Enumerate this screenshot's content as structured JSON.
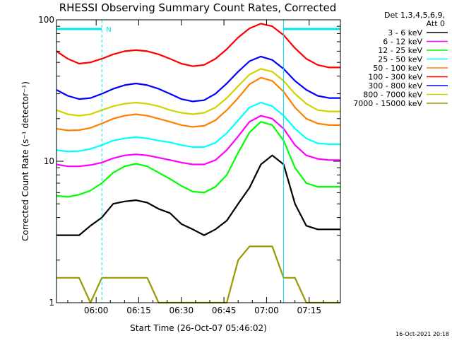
{
  "chart_data": {
    "type": "line",
    "title": "RHESSI Observing Summary Count Rates, Corrected",
    "xlabel": "Start Time (26-Oct-07 05:46:02)",
    "ylabel": "Corrected Count Rate (s⁻¹ detector⁻¹)",
    "x_scale": "time",
    "y_scale": "log",
    "xlim": [
      "05:46:02",
      "07:26:00"
    ],
    "ylim": [
      1,
      100
    ],
    "x_ticks": [
      "06:00",
      "06:15",
      "06:30",
      "06:45",
      "07:00",
      "07:15"
    ],
    "y_ticks": [
      "1",
      "10",
      "100"
    ],
    "legend_header": [
      "Det 1,3,4,5,6,9,",
      "Att 0"
    ],
    "legend_position": "right",
    "markers": {
      "night_bars": [
        [
          "05:46",
          "06:02"
        ],
        [
          "07:06",
          "07:26"
        ]
      ],
      "n_label": "N",
      "vertical_lines_dashed": [
        "06:02",
        "07:26"
      ],
      "vertical_lines_solid": [
        "05:46",
        "07:06"
      ]
    },
    "x_hours": [
      "05:46",
      "05:50",
      "05:54",
      "05:58",
      "06:02",
      "06:06",
      "06:10",
      "06:14",
      "06:18",
      "06:22",
      "06:26",
      "06:30",
      "06:34",
      "06:38",
      "06:42",
      "06:46",
      "06:50",
      "06:54",
      "06:58",
      "07:02",
      "07:06",
      "07:10",
      "07:14",
      "07:18",
      "07:22",
      "07:26"
    ],
    "series": [
      {
        "name": "3 - 6 keV",
        "color": "#000000",
        "values": [
          3,
          3,
          3,
          3.5,
          4,
          5,
          5.2,
          5.3,
          5.1,
          4.6,
          4.3,
          3.6,
          3.3,
          3,
          3.3,
          3.8,
          5,
          6.5,
          9.5,
          11,
          9.5,
          5,
          3.5,
          3.3,
          3.3,
          3.3
        ]
      },
      {
        "name": "6 - 12 keV",
        "color": "#ff00ff",
        "values": [
          9.5,
          9.2,
          9.2,
          9.4,
          9.8,
          10.5,
          11,
          11.2,
          11,
          10.6,
          10.2,
          9.8,
          9.5,
          9.5,
          10.2,
          12,
          15,
          19,
          21,
          20,
          17,
          13,
          11,
          10.4,
          10.2,
          10.2
        ]
      },
      {
        "name": "12 - 25 keV",
        "color": "#00ff00",
        "values": [
          5.7,
          5.6,
          5.8,
          6.2,
          7,
          8.3,
          9.2,
          9.6,
          9.2,
          8.3,
          7.5,
          6.7,
          6.1,
          6,
          6.6,
          8,
          11.5,
          16,
          19,
          18,
          14,
          9,
          7,
          6.6,
          6.6,
          6.6
        ]
      },
      {
        "name": "25 - 50 keV",
        "color": "#00ffff",
        "values": [
          12,
          11.7,
          11.8,
          12.2,
          13,
          14,
          14.5,
          14.8,
          14.5,
          14,
          13.6,
          13,
          12.6,
          12.6,
          13.5,
          15.8,
          19.5,
          24,
          26,
          24.5,
          21,
          17,
          14.5,
          13.4,
          13.2,
          13.2
        ]
      },
      {
        "name": "50 - 100 keV",
        "color": "#ff8000",
        "values": [
          17,
          16.5,
          16.6,
          17.2,
          18.5,
          20,
          21,
          21.5,
          21,
          20,
          19,
          18,
          17.5,
          17.8,
          19.5,
          23,
          28,
          35,
          39,
          37,
          31,
          24,
          20,
          18.5,
          18,
          18
        ]
      },
      {
        "name": "100 - 300 keV",
        "color": "#ff0000",
        "values": [
          60,
          53,
          49,
          50,
          53,
          57,
          60,
          61,
          60,
          57,
          53,
          49,
          47,
          48,
          53,
          62,
          75,
          87,
          94,
          90,
          78,
          63,
          53,
          48,
          46,
          46
        ]
      },
      {
        "name": "300 - 800 keV",
        "color": "#0000ff",
        "values": [
          32,
          29,
          27.5,
          28,
          30,
          32.5,
          34.5,
          35.5,
          34.5,
          32.5,
          30,
          27.5,
          26.5,
          27,
          30,
          35.5,
          43,
          51,
          55,
          52,
          45,
          37,
          32,
          29,
          28,
          28
        ]
      },
      {
        "name": "800 - 7000 keV",
        "color": "#d2d200",
        "values": [
          23,
          21.5,
          21,
          21.5,
          23,
          24.5,
          25.5,
          26,
          25.5,
          24.5,
          23,
          22,
          21.5,
          22,
          24,
          28,
          34,
          41,
          45,
          43,
          37,
          30,
          25.5,
          23,
          22.5,
          22.5
        ]
      },
      {
        "name": "7000 - 15000 keV",
        "color": "#999900",
        "values": [
          1.5,
          1.5,
          1.5,
          1,
          1.5,
          1.5,
          1.5,
          1.5,
          1.5,
          1,
          1,
          1,
          1,
          1,
          1,
          1,
          2,
          2.5,
          2.5,
          2.5,
          1.5,
          1.5,
          1,
          1,
          1,
          1
        ]
      }
    ]
  },
  "footer": {
    "timestamp": "16-Oct-2021 20:18"
  }
}
